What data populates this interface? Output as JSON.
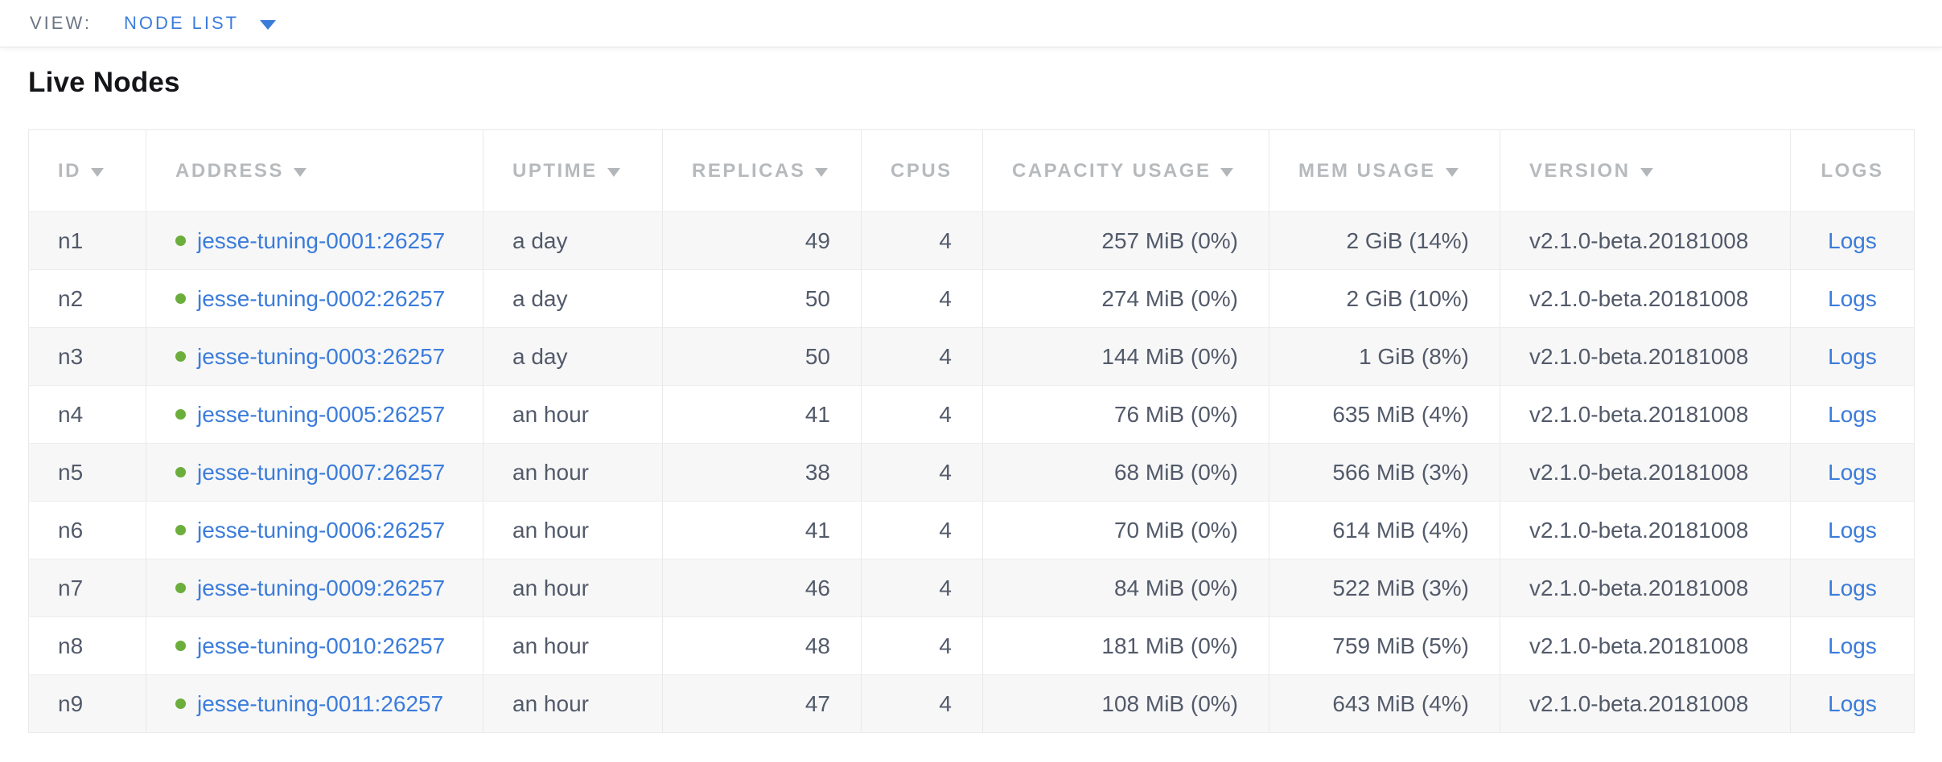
{
  "toolbar": {
    "view_label": "VIEW:",
    "view_value": "NODE LIST"
  },
  "page": {
    "title": "Live Nodes"
  },
  "colors": {
    "link_blue": "#3b7cdb",
    "live_status_green": "#6cae3c",
    "header_gray": "#b7babd",
    "alt_row_gray": "#f7f7f7"
  },
  "icons": {
    "view_caret": "chevron-down-icon",
    "sort": "sort-desc-icon",
    "live_dot": "node-live-status-icon"
  },
  "table": {
    "columns": [
      {
        "key": "id",
        "label": "ID",
        "sortable": true,
        "align": "left"
      },
      {
        "key": "address",
        "label": "ADDRESS",
        "sortable": true,
        "align": "left"
      },
      {
        "key": "uptime",
        "label": "UPTIME",
        "sortable": true,
        "align": "left"
      },
      {
        "key": "replicas",
        "label": "REPLICAS",
        "sortable": true,
        "align": "right"
      },
      {
        "key": "cpus",
        "label": "CPUS",
        "sortable": false,
        "align": "right"
      },
      {
        "key": "capacity",
        "label": "CAPACITY USAGE",
        "sortable": true,
        "align": "right"
      },
      {
        "key": "mem",
        "label": "MEM USAGE",
        "sortable": true,
        "align": "right"
      },
      {
        "key": "version",
        "label": "VERSION",
        "sortable": true,
        "align": "left"
      },
      {
        "key": "logs",
        "label": "LOGS",
        "sortable": false,
        "align": "center"
      }
    ],
    "rows": [
      {
        "id": "n1",
        "address": "jesse-tuning-0001:26257",
        "uptime": "a day",
        "replicas": "49",
        "cpus": "4",
        "capacity": "257 MiB (0%)",
        "mem": "2 GiB (14%)",
        "version": "v2.1.0-beta.20181008",
        "logs": "Logs"
      },
      {
        "id": "n2",
        "address": "jesse-tuning-0002:26257",
        "uptime": "a day",
        "replicas": "50",
        "cpus": "4",
        "capacity": "274 MiB (0%)",
        "mem": "2 GiB (10%)",
        "version": "v2.1.0-beta.20181008",
        "logs": "Logs"
      },
      {
        "id": "n3",
        "address": "jesse-tuning-0003:26257",
        "uptime": "a day",
        "replicas": "50",
        "cpus": "4",
        "capacity": "144 MiB (0%)",
        "mem": "1 GiB (8%)",
        "version": "v2.1.0-beta.20181008",
        "logs": "Logs"
      },
      {
        "id": "n4",
        "address": "jesse-tuning-0005:26257",
        "uptime": "an hour",
        "replicas": "41",
        "cpus": "4",
        "capacity": "76 MiB (0%)",
        "mem": "635 MiB (4%)",
        "version": "v2.1.0-beta.20181008",
        "logs": "Logs"
      },
      {
        "id": "n5",
        "address": "jesse-tuning-0007:26257",
        "uptime": "an hour",
        "replicas": "38",
        "cpus": "4",
        "capacity": "68 MiB (0%)",
        "mem": "566 MiB (3%)",
        "version": "v2.1.0-beta.20181008",
        "logs": "Logs"
      },
      {
        "id": "n6",
        "address": "jesse-tuning-0006:26257",
        "uptime": "an hour",
        "replicas": "41",
        "cpus": "4",
        "capacity": "70 MiB (0%)",
        "mem": "614 MiB (4%)",
        "version": "v2.1.0-beta.20181008",
        "logs": "Logs"
      },
      {
        "id": "n7",
        "address": "jesse-tuning-0009:26257",
        "uptime": "an hour",
        "replicas": "46",
        "cpus": "4",
        "capacity": "84 MiB (0%)",
        "mem": "522 MiB (3%)",
        "version": "v2.1.0-beta.20181008",
        "logs": "Logs"
      },
      {
        "id": "n8",
        "address": "jesse-tuning-0010:26257",
        "uptime": "an hour",
        "replicas": "48",
        "cpus": "4",
        "capacity": "181 MiB (0%)",
        "mem": "759 MiB (5%)",
        "version": "v2.1.0-beta.20181008",
        "logs": "Logs"
      },
      {
        "id": "n9",
        "address": "jesse-tuning-0011:26257",
        "uptime": "an hour",
        "replicas": "47",
        "cpus": "4",
        "capacity": "108 MiB (0%)",
        "mem": "643 MiB (4%)",
        "version": "v2.1.0-beta.20181008",
        "logs": "Logs"
      }
    ]
  }
}
